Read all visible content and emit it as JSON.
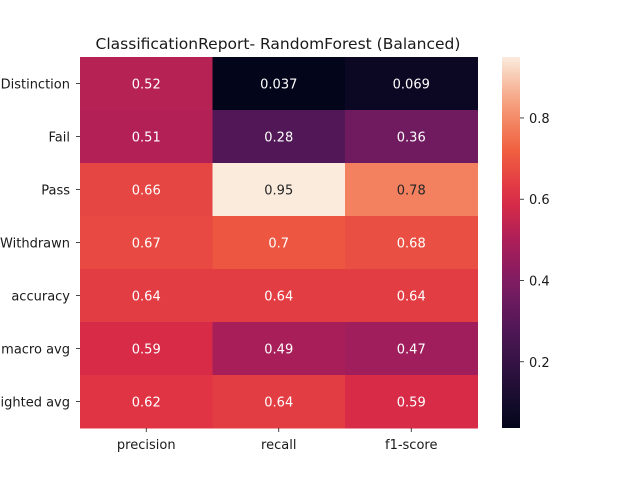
{
  "chart_data": {
    "type": "heatmap",
    "title": "ClassificationReport- RandomForest (Balanced)",
    "xlabel": "",
    "ylabel": "",
    "x_categories": [
      "precision",
      "recall",
      "f1-score"
    ],
    "y_categories": [
      "Distinction",
      "Fail",
      "Pass",
      "Withdrawn",
      "accuracy",
      "macro avg",
      "ighted avg"
    ],
    "values": [
      [
        0.52,
        0.037,
        0.069
      ],
      [
        0.51,
        0.28,
        0.36
      ],
      [
        0.66,
        0.95,
        0.78
      ],
      [
        0.67,
        0.7,
        0.68
      ],
      [
        0.64,
        0.64,
        0.64
      ],
      [
        0.59,
        0.49,
        0.47
      ],
      [
        0.62,
        0.64,
        0.59
      ]
    ],
    "cell_labels": [
      [
        "0.52",
        "0.037",
        "0.069"
      ],
      [
        "0.51",
        "0.28",
        "0.36"
      ],
      [
        "0.66",
        "0.95",
        "0.78"
      ],
      [
        "0.67",
        "0.7",
        "0.68"
      ],
      [
        "0.64",
        "0.64",
        "0.64"
      ],
      [
        "0.59",
        "0.49",
        "0.47"
      ],
      [
        "0.62",
        "0.64",
        "0.59"
      ]
    ],
    "colorbar": {
      "colormap": "rocket",
      "vmin": 0.037,
      "vmax": 0.95,
      "ticks": [
        0.2,
        0.4,
        0.6,
        0.8
      ],
      "tick_labels": [
        "0.2",
        "0.4",
        "0.6",
        "0.8"
      ]
    }
  }
}
